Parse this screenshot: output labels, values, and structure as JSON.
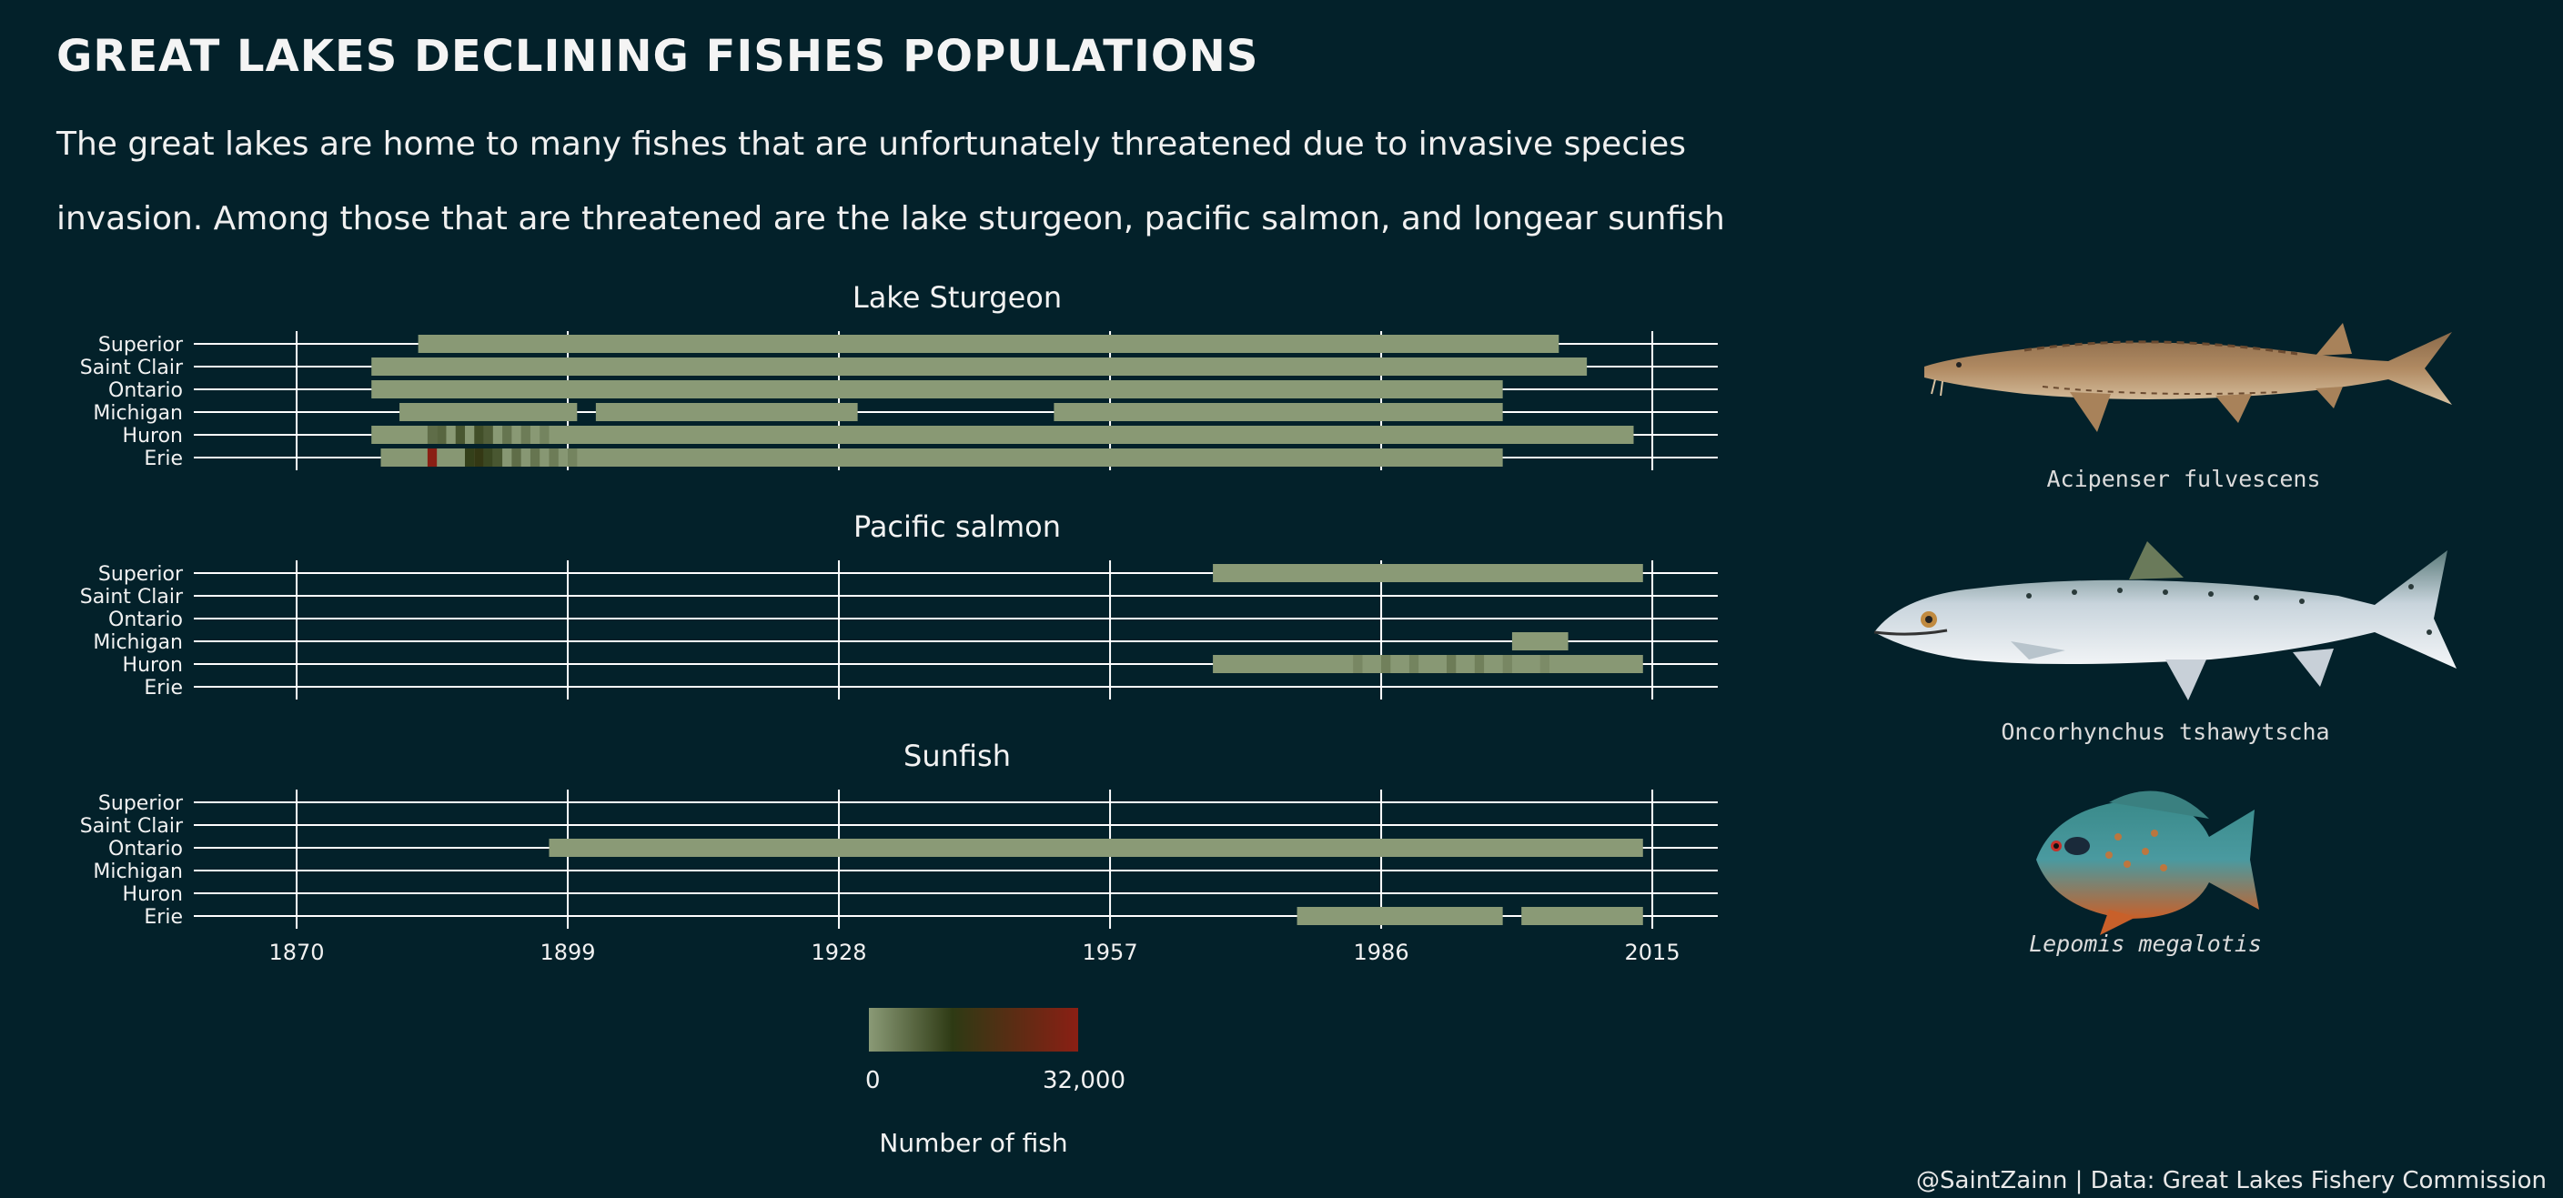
{
  "title": "GREAT LAKES DECLINING FISHES POPULATIONS",
  "subtitle_lines": [
    "The great lakes are home to many fishes that are unfortunately threatened due to invasive species",
    "invasion. Among those that are threatened are the lake sturgeon, pacific salmon, and longear sunfish"
  ],
  "caption": "@SaintZainn | Data: Great Lakes Fishery Commission",
  "species": [
    {
      "name": "Acipenser fulvescens",
      "italic": false,
      "icon": "lake-sturgeon-illustration"
    },
    {
      "name": "Oncorhynchus tshawytscha",
      "italic": false,
      "icon": "chinook-salmon-illustration"
    },
    {
      "name": "Lepomis megalotis",
      "italic": true,
      "icon": "longear-sunfish-illustration"
    }
  ],
  "colors": {
    "background": "#03212a",
    "low": "#8a9a76",
    "mid": "#2e3a14",
    "high": "#8a1f14",
    "grid": "#ffffff"
  },
  "chart_data": [
    {
      "type": "heatmap",
      "title": "Lake Sturgeon",
      "lakes": [
        "Superior",
        "Saint Clair",
        "Ontario",
        "Michigan",
        "Huron",
        "Erie"
      ],
      "x_ticks": [
        1870,
        1899,
        1928,
        1957,
        1986,
        2015
      ],
      "xlim": [
        1859,
        2022
      ],
      "segments": [
        {
          "lake": "Superior",
          "start": 1883,
          "end": 2005,
          "value": 80
        },
        {
          "lake": "Saint Clair",
          "start": 1878,
          "end": 2008,
          "value": 40
        },
        {
          "lake": "Ontario",
          "start": 1878,
          "end": 1999,
          "value": 30
        },
        {
          "lake": "Michigan",
          "start": 1881,
          "end": 1900,
          "value": 150
        },
        {
          "lake": "Michigan",
          "start": 1902,
          "end": 1930,
          "value": 100
        },
        {
          "lake": "Michigan",
          "start": 1951,
          "end": 1999,
          "value": 40
        },
        {
          "lake": "Huron",
          "start": 1878,
          "end": 2013,
          "value": 200
        },
        {
          "lake": "Erie",
          "start": 1879,
          "end": 1999,
          "value": 400
        }
      ],
      "highlights": [
        {
          "lake": "Huron",
          "year": 1884,
          "value": 6000
        },
        {
          "lake": "Huron",
          "year": 1885,
          "value": 7000
        },
        {
          "lake": "Huron",
          "year": 1887,
          "value": 9000
        },
        {
          "lake": "Huron",
          "year": 1889,
          "value": 10000
        },
        {
          "lake": "Huron",
          "year": 1890,
          "value": 8000
        },
        {
          "lake": "Huron",
          "year": 1892,
          "value": 5000
        },
        {
          "lake": "Huron",
          "year": 1894,
          "value": 4000
        },
        {
          "lake": "Huron",
          "year": 1896,
          "value": 3000
        },
        {
          "lake": "Erie",
          "year": 1884,
          "value": 32000
        },
        {
          "lake": "Erie",
          "year": 1888,
          "value": 12000
        },
        {
          "lake": "Erie",
          "year": 1889,
          "value": 14000
        },
        {
          "lake": "Erie",
          "year": 1890,
          "value": 11000
        },
        {
          "lake": "Erie",
          "year": 1891,
          "value": 9000
        },
        {
          "lake": "Erie",
          "year": 1893,
          "value": 6000
        },
        {
          "lake": "Erie",
          "year": 1895,
          "value": 5000
        },
        {
          "lake": "Erie",
          "year": 1897,
          "value": 4000
        },
        {
          "lake": "Erie",
          "year": 1899,
          "value": 3000
        }
      ]
    },
    {
      "type": "heatmap",
      "title": "Pacific salmon",
      "lakes": [
        "Superior",
        "Saint Clair",
        "Ontario",
        "Michigan",
        "Huron",
        "Erie"
      ],
      "x_ticks": [
        1870,
        1899,
        1928,
        1957,
        1986,
        2015
      ],
      "xlim": [
        1859,
        2022
      ],
      "segments": [
        {
          "lake": "Superior",
          "start": 1968,
          "end": 2014,
          "value": 30
        },
        {
          "lake": "Michigan",
          "start": 2000,
          "end": 2006,
          "value": 60
        },
        {
          "lake": "Huron",
          "start": 1968,
          "end": 2014,
          "value": 300
        }
      ],
      "highlights": [
        {
          "lake": "Huron",
          "year": 1983,
          "value": 2500
        },
        {
          "lake": "Huron",
          "year": 1986,
          "value": 3500
        },
        {
          "lake": "Huron",
          "year": 1989,
          "value": 3000
        },
        {
          "lake": "Huron",
          "year": 1993,
          "value": 4000
        },
        {
          "lake": "Huron",
          "year": 1996,
          "value": 3500
        },
        {
          "lake": "Huron",
          "year": 1999,
          "value": 2500
        },
        {
          "lake": "Huron",
          "year": 2003,
          "value": 2000
        }
      ]
    },
    {
      "type": "heatmap",
      "title": "Sunfish",
      "lakes": [
        "Superior",
        "Saint Clair",
        "Ontario",
        "Michigan",
        "Huron",
        "Erie"
      ],
      "x_ticks": [
        1870,
        1899,
        1928,
        1957,
        1986,
        2015
      ],
      "xlim": [
        1859,
        2022
      ],
      "segments": [
        {
          "lake": "Ontario",
          "start": 1897,
          "end": 2014,
          "value": 50
        },
        {
          "lake": "Erie",
          "start": 1977,
          "end": 1999,
          "value": 60
        },
        {
          "lake": "Erie",
          "start": 2001,
          "end": 2014,
          "value": 60
        }
      ],
      "highlights": []
    }
  ],
  "legend": {
    "title": "Number of fish",
    "min_label": "0",
    "max_label": "32,000",
    "min": 0,
    "max": 32000
  }
}
